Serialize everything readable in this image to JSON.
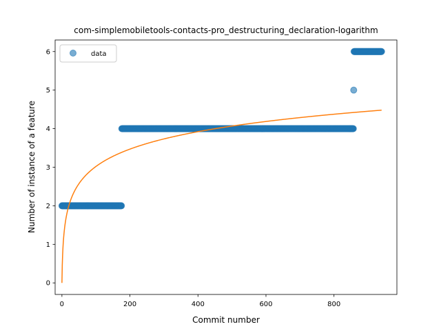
{
  "chart_data": {
    "type": "scatter",
    "title": "com-simplemobiletools-contacts-pro_destructuring_declaration-logarithm",
    "xlabel": "Commit number",
    "ylabel": "Number of instance of a feature",
    "xlim": [
      -20,
      985
    ],
    "ylim": [
      -0.3,
      6.3
    ],
    "xticks": [
      0,
      200,
      400,
      600,
      800
    ],
    "yticks": [
      0,
      1,
      2,
      3,
      4,
      5,
      6
    ],
    "grid": false,
    "legend": {
      "placement": "top-left",
      "entries": [
        "data"
      ]
    },
    "series": [
      {
        "name": "data",
        "kind": "scatter",
        "color": "#1f77b4",
        "opacity": 0.6,
        "segments": [
          {
            "x_start": 0,
            "x_end": 175,
            "y": 2
          },
          {
            "x_start": 176,
            "x_end": 857,
            "y": 4
          },
          {
            "x_start": 858,
            "x_end": 858,
            "y": 5
          },
          {
            "x_start": 859,
            "x_end": 940,
            "y": 6
          }
        ]
      },
      {
        "kind": "line",
        "color": "#ff7f0e",
        "function": "logarithmic",
        "x_start": 0,
        "x_end": 940,
        "y_at_start": 0,
        "y_at_end": 4.48
      }
    ]
  }
}
